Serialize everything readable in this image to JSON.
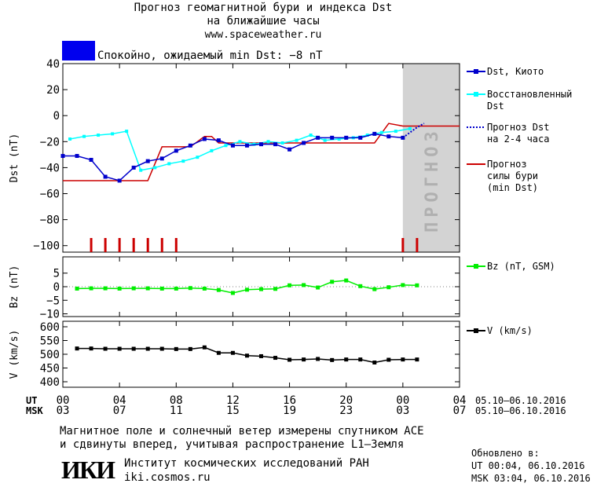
{
  "title": {
    "line1": "Прогноз геомагнитной бури и индекса Dst",
    "line2": "на ближайшие часы",
    "site": "www.spaceweather.ru"
  },
  "status": {
    "text": "Спокойно, ожидаемый min Dst: −8 nT",
    "color": "#0000ee"
  },
  "legend": {
    "dst_kyoto": "Dst, Киото",
    "reconstructed": "Восстановленный\nDst",
    "forecast_dst": "Прогноз Dst\nна 2-4 часа",
    "storm_forecast": "Прогноз\nсилы бури\n(min Dst)",
    "bz": "Bz (nT, GSM)",
    "v": "V (km/s)"
  },
  "forecast_label": "ПРОГНОЗ",
  "axes": {
    "ut_label": "UT",
    "msk_label": "MSK",
    "ut_ticks": [
      "00",
      "04",
      "08",
      "12",
      "16",
      "20",
      "00",
      "04"
    ],
    "msk_ticks": [
      "03",
      "07",
      "11",
      "15",
      "19",
      "23",
      "03",
      "07"
    ],
    "ut_range": "05.10–06.10.2016",
    "msk_range": "05.10–06.10.2016"
  },
  "footer": {
    "note1": "Магнитное поле и солнечный ветер измерены спутником ACE",
    "note2": "и сдвинуты вперед, учитывая распространение L1–Земля",
    "logo": "ИКИ",
    "institute": "Институт космических исследований РАН",
    "institute_url": "iki.cosmos.ru",
    "updated_label": "Обновлено в:",
    "updated_ut": "UT   00:04, 06.10.2016",
    "updated_msk": "MSK 03:04, 06.10.2016"
  },
  "colors": {
    "dst_kyoto": "#0000cc",
    "reconstructed": "#00ffff",
    "forecast": "#cc0000",
    "bz": "#00ee00",
    "v": "#000000",
    "forecast_zone": "#d3d3d3"
  },
  "chart_data": [
    {
      "type": "line",
      "ylabel": "Dst (nT)",
      "ylim": [
        -105,
        40
      ],
      "yticks": [
        40,
        20,
        0,
        -20,
        -40,
        -60,
        -80,
        -100
      ],
      "xlim": [
        0,
        28
      ],
      "series": [
        {
          "name": "Dst, Киото",
          "x": [
            0,
            1,
            2,
            3,
            4,
            5,
            6,
            7,
            8,
            9,
            10,
            11,
            12,
            13,
            14,
            15,
            16,
            17,
            18,
            19,
            20,
            21,
            22,
            23,
            24
          ],
          "values": [
            -31,
            -31,
            -34,
            -47,
            -50,
            -40,
            -35,
            -33,
            -27,
            -23,
            -18,
            -19,
            -23,
            -23,
            -22,
            -22,
            -26,
            -21,
            -17,
            -17,
            -17,
            -17,
            -14,
            -16,
            -17
          ]
        },
        {
          "name": "Восстановленный Dst",
          "x": [
            0.5,
            1.5,
            2.5,
            3.5,
            4.5,
            5.5,
            6.5,
            7.5,
            8.5,
            9.5,
            10.5,
            11.5,
            12.5,
            13.5,
            14.5,
            15.5,
            16.5,
            17.5,
            18.5,
            19.5,
            20.5,
            21.5,
            22.5,
            23.5,
            24.5
          ],
          "values": [
            -18,
            -16,
            -15,
            -14,
            -12,
            -42,
            -40,
            -37,
            -35,
            -32,
            -27,
            -23,
            -20,
            -22,
            -20,
            -21,
            -19,
            -15,
            -19,
            -18,
            -17,
            -15,
            -13,
            -12,
            -10
          ]
        },
        {
          "name": "Прогноз Dst на 2-4 часа",
          "x": [
            24,
            24.5,
            25,
            25.5
          ],
          "values": [
            -17,
            -13,
            -9,
            -6
          ]
        },
        {
          "name": "Прогноз силы бури (min Dst)",
          "x": [
            0,
            4,
            5,
            6,
            7,
            8,
            9,
            10,
            10.5,
            11,
            12,
            13,
            14,
            15,
            16,
            17,
            18,
            19,
            20,
            21,
            22,
            23,
            24,
            25,
            26,
            28
          ],
          "values": [
            -50,
            -50,
            -50,
            -50,
            -24,
            -24,
            -24,
            -16,
            -16,
            -21,
            -21,
            -21,
            -21,
            -21,
            -21,
            -21,
            -21,
            -21,
            -21,
            -21,
            -21,
            -6,
            -8,
            -8,
            -8,
            -8
          ]
        }
      ],
      "markers_x": [
        2,
        3,
        4,
        5,
        6,
        7,
        8,
        24,
        25
      ]
    },
    {
      "type": "line",
      "ylabel": "Bz (nT)",
      "ylim": [
        -11,
        11
      ],
      "yticks": [
        5,
        0,
        -5,
        -10
      ],
      "series": [
        {
          "name": "Bz (nT, GSM)",
          "x": [
            1,
            2,
            3,
            4,
            5,
            6,
            7,
            8,
            9,
            10,
            11,
            12,
            13,
            14,
            15,
            16,
            17,
            18,
            19,
            20,
            21,
            22,
            23,
            24,
            25
          ],
          "values": [
            -0.7,
            -0.6,
            -0.6,
            -0.7,
            -0.6,
            -0.6,
            -0.7,
            -0.7,
            -0.5,
            -0.7,
            -1.2,
            -2.3,
            -1.1,
            -0.9,
            -0.8,
            0.5,
            0.6,
            -0.3,
            1.8,
            2.3,
            0.2,
            -0.9,
            -0.2,
            0.6,
            0.5
          ]
        }
      ]
    },
    {
      "type": "line",
      "ylabel": "V (km/s)",
      "ylim": [
        380,
        620
      ],
      "yticks": [
        600,
        550,
        500,
        450,
        400
      ],
      "series": [
        {
          "name": "V (km/s)",
          "x": [
            1,
            2,
            3,
            4,
            5,
            6,
            7,
            8,
            9,
            10,
            11,
            12,
            13,
            14,
            15,
            16,
            17,
            18,
            19,
            20,
            21,
            22,
            23,
            24,
            25
          ],
          "values": [
            521,
            521,
            520,
            520,
            520,
            520,
            520,
            519,
            519,
            525,
            505,
            505,
            495,
            493,
            487,
            480,
            481,
            483,
            479,
            481,
            481,
            470,
            480,
            481,
            481
          ]
        }
      ]
    }
  ]
}
